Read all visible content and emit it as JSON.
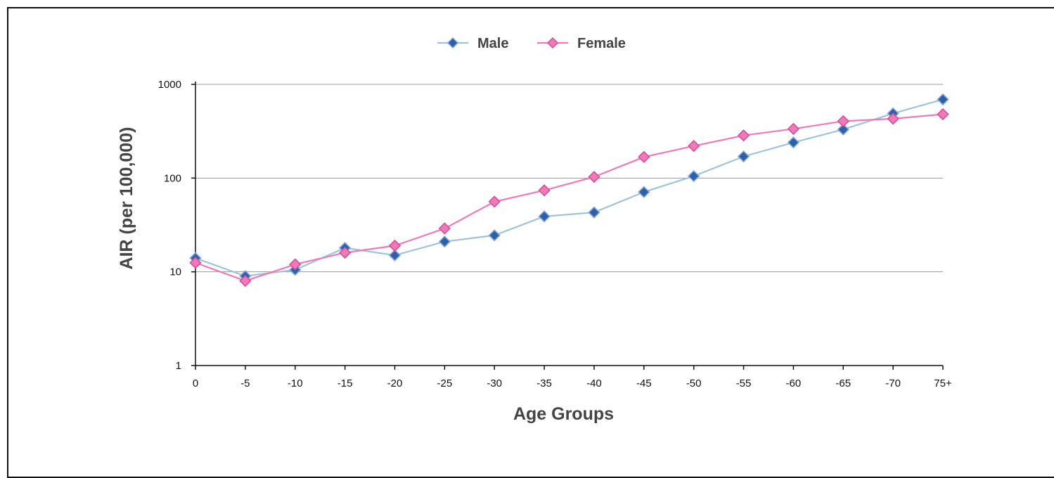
{
  "chart_data": {
    "type": "line",
    "categories": [
      "0",
      "-5",
      "-10",
      "-15",
      "-20",
      "-25",
      "-30",
      "-35",
      "-40",
      "-45",
      "-50",
      "-55",
      "-60",
      "-65",
      "-70",
      "75+"
    ],
    "series": [
      {
        "name": "Male",
        "color": "#2e5fa8",
        "line_color": "#9ec3dd",
        "values": [
          14,
          9,
          10.5,
          18,
          15,
          21,
          24.5,
          39,
          43,
          71,
          105,
          170,
          240,
          330,
          490,
          690
        ]
      },
      {
        "name": "Female",
        "color": "#f07ab8",
        "line_color": "#f07ab8",
        "values": [
          12.5,
          8,
          12,
          16,
          19,
          29,
          56,
          74,
          103,
          168,
          220,
          285,
          335,
          405,
          430,
          480
        ]
      }
    ],
    "xlabel": "Age Groups",
    "ylabel": "AIR (per 100,000)",
    "yscale": "log",
    "ylim": [
      1,
      1000
    ],
    "yticks": [
      "1",
      "10",
      "100",
      "1000"
    ],
    "grid": "horizontal",
    "legend_position": "top-center",
    "marker": "diamond"
  }
}
